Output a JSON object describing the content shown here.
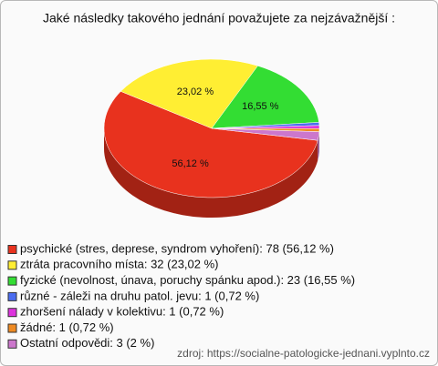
{
  "chart_data": {
    "type": "pie",
    "title": "Jaké následky takového jednání považujete za nejzávažnější :",
    "categories": [
      "psychické (stres, deprese, syndrom vyhoření)",
      "ztráta pracovního místa",
      "fyzické (nevolnost, únava, poruchy spánku apod.)",
      "různé - záleži na druhu patol. jevu",
      "zhoršení nálady v kolektivu",
      "žádné",
      "Ostatní odpovědi"
    ],
    "values": [
      56.12,
      23.02,
      16.55,
      0.72,
      0.72,
      0.72,
      2
    ],
    "value_labels": [
      "56,12 %",
      "23,02 %",
      "16,55 %",
      null,
      null,
      null,
      null
    ],
    "legend_labels": [
      "psychické (stres, deprese, syndrom vyhoření): 78 (56,12 %)",
      "ztráta pracovního místa: 32 (23,02 %)",
      "fyzické (nevolnost, únava, poruchy spánku apod.): 23 (16,55 %)",
      "různé - záleži na druhu patol. jevu: 1 (0,72 %)",
      "zhoršení nálady v kolektivu: 1 (0,72 %)",
      "žádné: 1 (0,72 %)",
      "Ostatní odpovědi: 3 (2 %)"
    ],
    "colors": [
      "#e8321e",
      "#ffee33",
      "#33dd33",
      "#4a6cf0",
      "#dd33dd",
      "#ee8a22",
      "#cc77cc"
    ],
    "source": "zdroj: https://socialne-patologicke-jednani.vyplnto.cz"
  }
}
